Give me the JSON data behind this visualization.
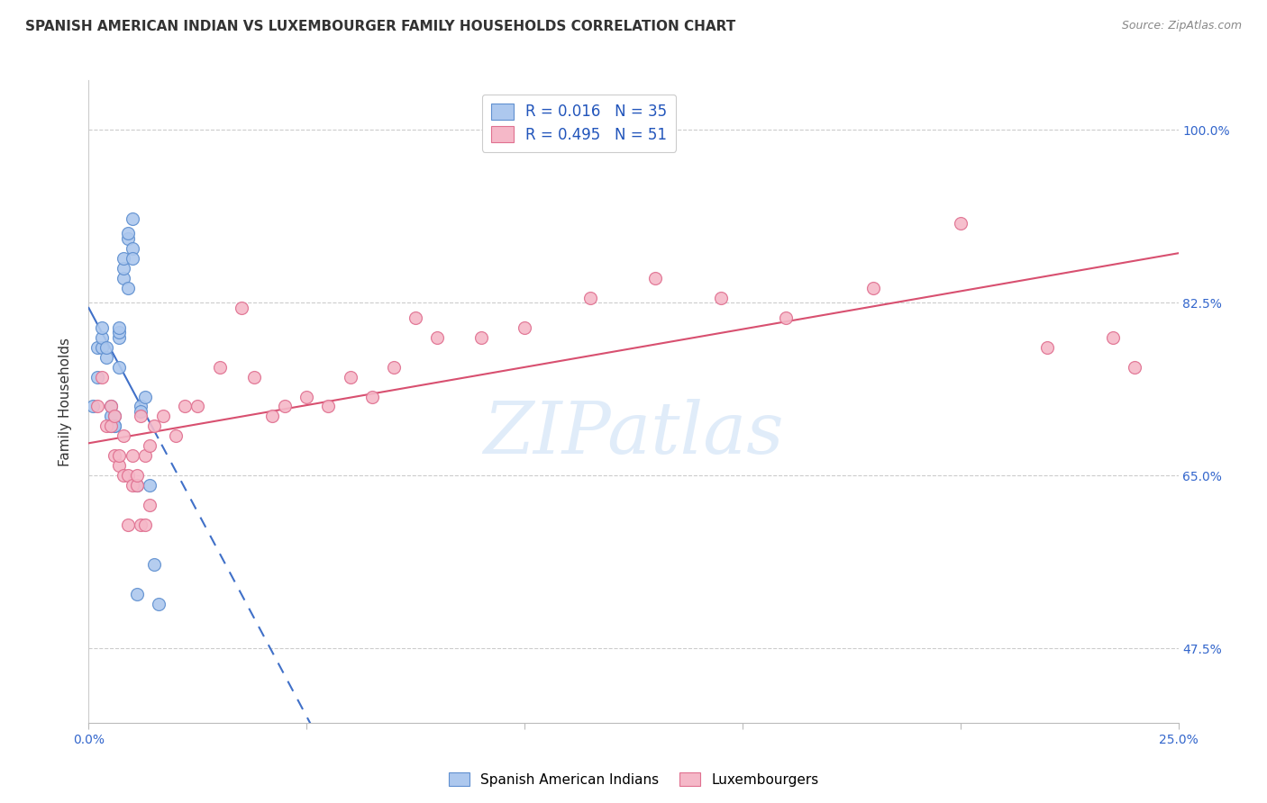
{
  "title": "SPANISH AMERICAN INDIAN VS LUXEMBOURGER FAMILY HOUSEHOLDS CORRELATION CHART",
  "source": "Source: ZipAtlas.com",
  "ylabel": "Family Households",
  "ytick_labels": [
    "47.5%",
    "65.0%",
    "82.5%",
    "100.0%"
  ],
  "ytick_vals": [
    0.475,
    0.65,
    0.825,
    1.0
  ],
  "watermark": "ZIPatlas",
  "blue_R": "0.016",
  "blue_N": "35",
  "pink_R": "0.495",
  "pink_N": "51",
  "blue_color": "#adc8ee",
  "pink_color": "#f5b8c8",
  "blue_edge_color": "#6090d0",
  "pink_edge_color": "#e07090",
  "blue_line_color": "#4070c8",
  "pink_line_color": "#d85070",
  "legend_text_color": "#2255bb",
  "blue_scatter_x": [
    0.001,
    0.002,
    0.002,
    0.003,
    0.003,
    0.003,
    0.004,
    0.004,
    0.005,
    0.005,
    0.005,
    0.006,
    0.006,
    0.006,
    0.007,
    0.007,
    0.007,
    0.007,
    0.008,
    0.008,
    0.008,
    0.009,
    0.009,
    0.009,
    0.01,
    0.01,
    0.01,
    0.011,
    0.011,
    0.012,
    0.012,
    0.013,
    0.014,
    0.015,
    0.016
  ],
  "blue_scatter_y": [
    0.72,
    0.78,
    0.75,
    0.78,
    0.79,
    0.8,
    0.77,
    0.78,
    0.71,
    0.72,
    0.7,
    0.71,
    0.7,
    0.7,
    0.79,
    0.795,
    0.8,
    0.76,
    0.85,
    0.86,
    0.87,
    0.89,
    0.895,
    0.84,
    0.91,
    0.88,
    0.87,
    0.64,
    0.53,
    0.72,
    0.715,
    0.73,
    0.64,
    0.56,
    0.52
  ],
  "pink_scatter_x": [
    0.002,
    0.003,
    0.004,
    0.005,
    0.005,
    0.006,
    0.006,
    0.007,
    0.007,
    0.008,
    0.008,
    0.009,
    0.009,
    0.01,
    0.01,
    0.011,
    0.011,
    0.012,
    0.012,
    0.013,
    0.013,
    0.014,
    0.014,
    0.015,
    0.017,
    0.02,
    0.022,
    0.025,
    0.03,
    0.035,
    0.038,
    0.042,
    0.045,
    0.05,
    0.055,
    0.06,
    0.065,
    0.07,
    0.075,
    0.08,
    0.09,
    0.1,
    0.115,
    0.13,
    0.145,
    0.16,
    0.18,
    0.2,
    0.22,
    0.235,
    0.24
  ],
  "pink_scatter_y": [
    0.72,
    0.75,
    0.7,
    0.7,
    0.72,
    0.67,
    0.71,
    0.66,
    0.67,
    0.65,
    0.69,
    0.6,
    0.65,
    0.64,
    0.67,
    0.64,
    0.65,
    0.6,
    0.71,
    0.6,
    0.67,
    0.62,
    0.68,
    0.7,
    0.71,
    0.69,
    0.72,
    0.72,
    0.76,
    0.82,
    0.75,
    0.71,
    0.72,
    0.73,
    0.72,
    0.75,
    0.73,
    0.76,
    0.81,
    0.79,
    0.79,
    0.8,
    0.83,
    0.85,
    0.83,
    0.81,
    0.84,
    0.905,
    0.78,
    0.79,
    0.76
  ],
  "xlim": [
    0.0,
    0.25
  ],
  "ylim": [
    0.4,
    1.05
  ],
  "figsize": [
    14.06,
    8.92
  ],
  "dpi": 100
}
